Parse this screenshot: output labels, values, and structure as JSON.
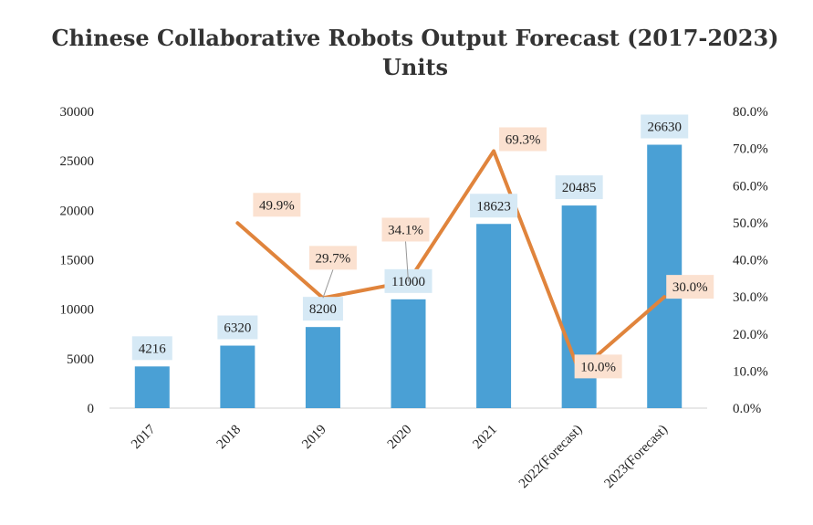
{
  "chart_data": {
    "type": "bar+line",
    "title": "Chinese Collaborative Robots Output Forecast (2017-2023)",
    "subtitle": "Units",
    "categories": [
      "2017",
      "2018",
      "2019",
      "2020",
      "2021",
      "2022(Forecast)",
      "2023(Forecast)"
    ],
    "bars": {
      "values": [
        4216,
        6320,
        8200,
        11000,
        18623,
        20485,
        26630
      ],
      "labels": [
        "4216",
        "6320",
        "8200",
        "11000",
        "18623",
        "20485",
        "26630"
      ],
      "color": "#4aa0d5",
      "label_bg": "#d6e9f5"
    },
    "line": {
      "values": [
        null,
        49.9,
        29.7,
        34.1,
        69.3,
        10.0,
        30.0
      ],
      "labels": [
        "",
        "49.9%",
        "29.7%",
        "34.1%",
        "69.3%",
        "10.0%",
        "30.0%"
      ],
      "color": "#e0843c",
      "label_bg": "#fbe1d0"
    },
    "y_left": {
      "ylim": [
        0,
        30000
      ],
      "ticks": [
        "0",
        "5000",
        "10000",
        "15000",
        "20000",
        "25000",
        "30000"
      ]
    },
    "y_right": {
      "ylim": [
        0,
        80
      ],
      "ticks": [
        "0.0%",
        "10.0%",
        "20.0%",
        "30.0%",
        "40.0%",
        "50.0%",
        "60.0%",
        "70.0%",
        "80.0%"
      ]
    },
    "grid": false
  }
}
